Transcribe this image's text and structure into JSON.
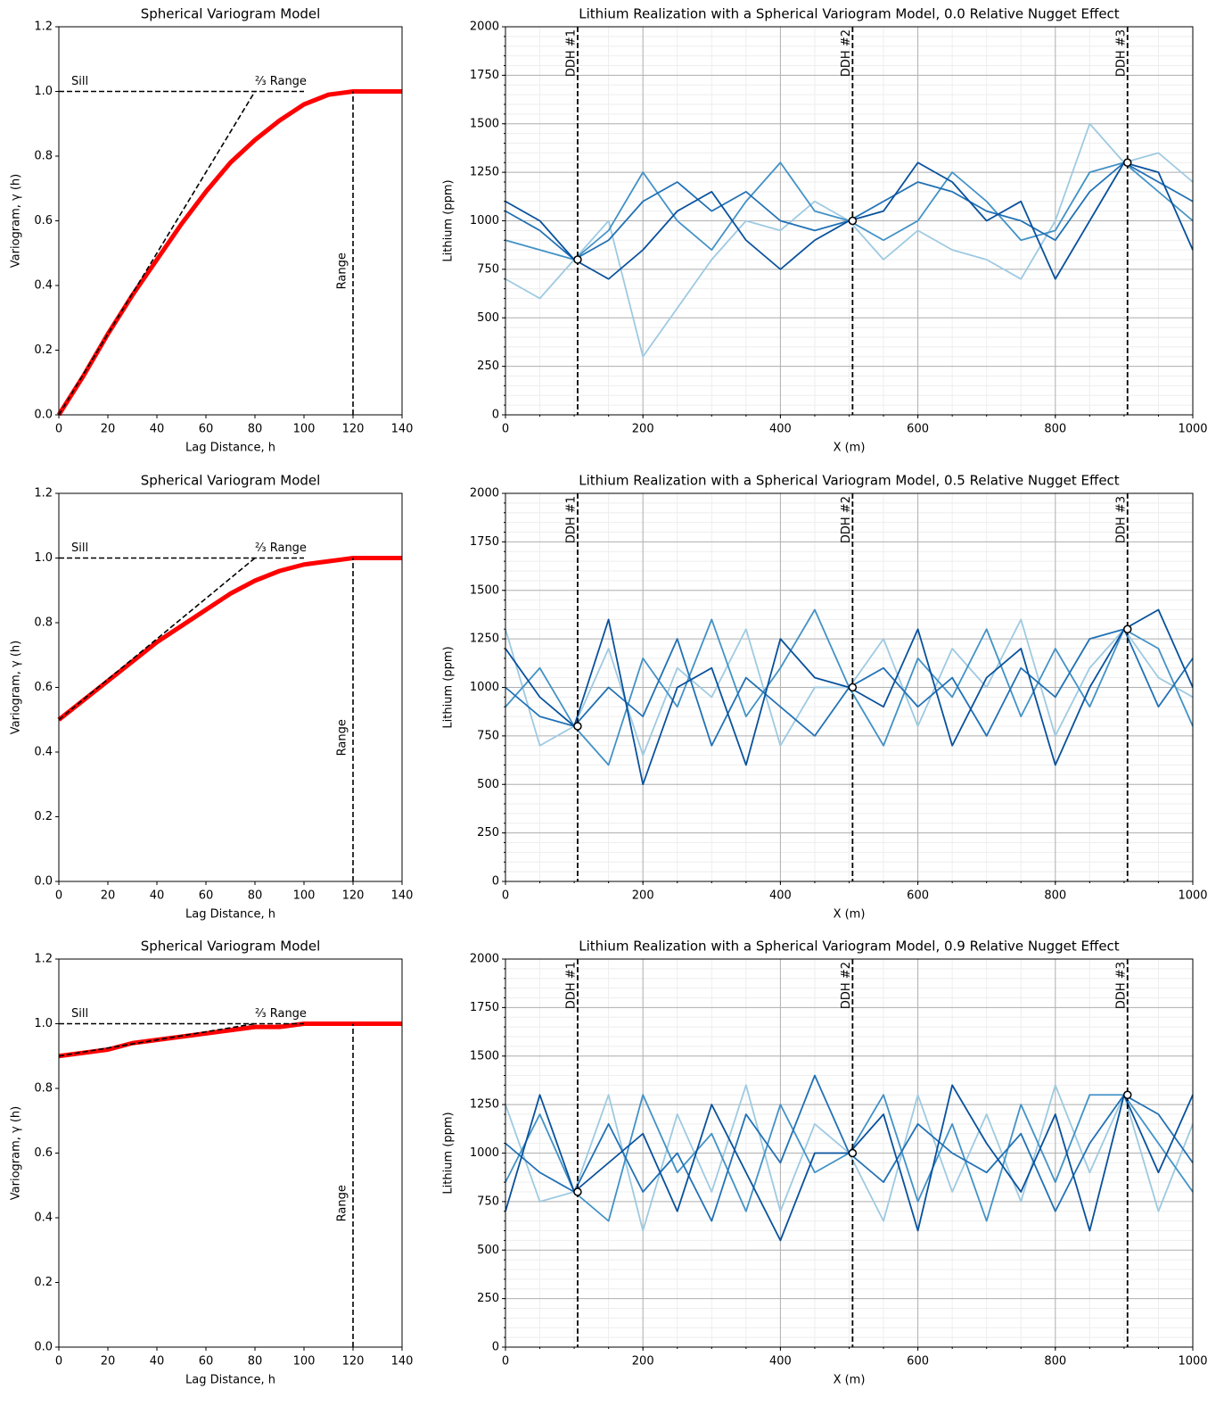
{
  "chart_data": [
    {
      "type": "line",
      "title": "Spherical Variogram Model",
      "xlabel": "Lag Distance, h",
      "ylabel": "Variogram, γ (h)",
      "x": [
        0,
        10,
        20,
        30,
        40,
        50,
        60,
        70,
        80,
        90,
        100,
        110,
        120,
        130,
        140
      ],
      "series": [
        {
          "color": "#ff0000",
          "values": [
            0,
            0.12,
            0.25,
            0.37,
            0.48,
            0.59,
            0.69,
            0.78,
            0.85,
            0.91,
            0.96,
            0.99,
            1,
            1,
            1
          ]
        }
      ],
      "sill_line": {
        "x": [
          0,
          100
        ],
        "y": [
          1,
          1
        ]
      },
      "tangent_line": {
        "x": [
          0,
          80
        ],
        "y": [
          0,
          1
        ]
      },
      "range_line": {
        "x": [
          120,
          120
        ],
        "y": [
          0,
          1
        ]
      },
      "sill_label": "Sill",
      "tangent_label": "⅔ Range",
      "range_label": "Range",
      "xlim": [
        0,
        140
      ],
      "xticks": [
        0,
        20,
        40,
        60,
        80,
        100,
        120,
        140
      ],
      "ylim": [
        0,
        1.2
      ],
      "yticks": [
        {
          "value": 0,
          "label": "0.0"
        },
        0.2,
        0.4,
        0.6,
        0.8,
        {
          "value": 1,
          "label": "1.0"
        },
        1.2
      ],
      "grid": false
    },
    {
      "type": "line",
      "title": "Lithium Realization with a Spherical Variogram Model, 0.0 Relative Nugget Effect",
      "xlabel": "X (m)",
      "ylabel": "Lithium (ppm)",
      "x": [
        0,
        50,
        100,
        150,
        200,
        250,
        300,
        350,
        400,
        450,
        500,
        550,
        600,
        650,
        700,
        750,
        800,
        850,
        900,
        950,
        1000
      ],
      "series": [
        {
          "color": "#9ecae1",
          "values": [
            700,
            600,
            800,
            1000,
            300,
            550,
            800,
            1000,
            950,
            1100,
            1000,
            800,
            950,
            850,
            800,
            700,
            1000,
            1500,
            1300,
            1350,
            1200
          ]
        },
        {
          "color": "#4292c6",
          "values": [
            900,
            850,
            800,
            950,
            1250,
            1000,
            850,
            1100,
            1300,
            1050,
            1000,
            900,
            1000,
            1250,
            1100,
            900,
            950,
            1250,
            1300,
            1150,
            1000
          ]
        },
        {
          "color": "#2171b5",
          "values": [
            1050,
            950,
            800,
            900,
            1100,
            1200,
            1050,
            1150,
            1000,
            950,
            1000,
            1100,
            1200,
            1150,
            1050,
            1000,
            900,
            1150,
            1300,
            1200,
            1100
          ]
        },
        {
          "color": "#08519c",
          "values": [
            1100,
            1000,
            800,
            700,
            850,
            1050,
            1150,
            900,
            750,
            900,
            1000,
            1050,
            1300,
            1200,
            1000,
            1100,
            700,
            1000,
            1300,
            1250,
            850
          ]
        }
      ],
      "wells": [
        {
          "label": "DDH #1",
          "x": 105,
          "value": 800
        },
        {
          "label": "DDH #2",
          "x": 505,
          "value": 1000
        },
        {
          "label": "DDH #3",
          "x": 905,
          "value": 1300
        }
      ],
      "xlim": [
        0,
        1000
      ],
      "xticks": [
        0,
        200,
        400,
        600,
        800,
        1000
      ],
      "ylim": [
        0,
        2000
      ],
      "yticks": [
        0,
        250,
        500,
        750,
        1000,
        1250,
        1500,
        1750,
        2000
      ],
      "grid": true
    },
    {
      "type": "line",
      "title": "Spherical Variogram Model",
      "xlabel": "Lag Distance, h",
      "ylabel": "Variogram, γ (h)",
      "x": [
        0,
        10,
        20,
        30,
        40,
        50,
        60,
        70,
        80,
        90,
        100,
        110,
        120,
        130,
        140
      ],
      "series": [
        {
          "color": "#ff0000",
          "values": [
            0.5,
            0.56,
            0.62,
            0.68,
            0.74,
            0.79,
            0.84,
            0.89,
            0.93,
            0.96,
            0.98,
            0.99,
            1,
            1,
            1
          ]
        }
      ],
      "sill_line": {
        "x": [
          0,
          100
        ],
        "y": [
          1,
          1
        ]
      },
      "tangent_line": {
        "x": [
          0,
          80
        ],
        "y": [
          0.5,
          1
        ]
      },
      "range_line": {
        "x": [
          120,
          120
        ],
        "y": [
          0,
          1
        ]
      },
      "sill_label": "Sill",
      "tangent_label": "⅔ Range",
      "range_label": "Range",
      "xlim": [
        0,
        140
      ],
      "xticks": [
        0,
        20,
        40,
        60,
        80,
        100,
        120,
        140
      ],
      "ylim": [
        0,
        1.2
      ],
      "yticks": [
        {
          "value": 0,
          "label": "0.0"
        },
        0.2,
        0.4,
        0.6,
        0.8,
        {
          "value": 1,
          "label": "1.0"
        },
        1.2
      ],
      "grid": false
    },
    {
      "type": "line",
      "title": "Lithium Realization with a Spherical Variogram Model, 0.5 Relative Nugget Effect",
      "xlabel": "X (m)",
      "ylabel": "Lithium (ppm)",
      "x": [
        0,
        50,
        100,
        150,
        200,
        250,
        300,
        350,
        400,
        450,
        500,
        550,
        600,
        650,
        700,
        750,
        800,
        850,
        900,
        950,
        1000
      ],
      "series": [
        {
          "color": "#9ecae1",
          "values": [
            1300,
            700,
            800,
            1200,
            650,
            1100,
            950,
            1300,
            700,
            1000,
            1000,
            1250,
            800,
            1200,
            1000,
            1350,
            750,
            1100,
            1300,
            1050,
            950
          ]
        },
        {
          "color": "#4292c6",
          "values": [
            900,
            1100,
            800,
            600,
            1150,
            900,
            1350,
            850,
            1100,
            1400,
            1000,
            700,
            1150,
            950,
            1300,
            850,
            1200,
            900,
            1300,
            1200,
            800
          ]
        },
        {
          "color": "#2171b5",
          "values": [
            1000,
            850,
            800,
            1000,
            850,
            1250,
            700,
            1050,
            900,
            750,
            1000,
            1100,
            900,
            1050,
            750,
            1100,
            950,
            1250,
            1300,
            900,
            1150
          ]
        },
        {
          "color": "#08519c",
          "values": [
            1200,
            950,
            800,
            1350,
            500,
            1000,
            1100,
            600,
            1250,
            1050,
            1000,
            900,
            1300,
            700,
            1050,
            1200,
            600,
            1000,
            1300,
            1400,
            1000
          ]
        }
      ],
      "wells": [
        {
          "label": "DDH #1",
          "x": 105,
          "value": 800
        },
        {
          "label": "DDH #2",
          "x": 505,
          "value": 1000
        },
        {
          "label": "DDH #3",
          "x": 905,
          "value": 1300
        }
      ],
      "xlim": [
        0,
        1000
      ],
      "xticks": [
        0,
        200,
        400,
        600,
        800,
        1000
      ],
      "ylim": [
        0,
        2000
      ],
      "yticks": [
        0,
        250,
        500,
        750,
        1000,
        1250,
        1500,
        1750,
        2000
      ],
      "grid": true
    },
    {
      "type": "line",
      "title": "Spherical Variogram Model",
      "xlabel": "Lag Distance, h",
      "ylabel": "Variogram, γ (h)",
      "x": [
        0,
        10,
        20,
        30,
        40,
        50,
        60,
        70,
        80,
        90,
        100,
        110,
        120,
        130,
        140
      ],
      "series": [
        {
          "color": "#ff0000",
          "values": [
            0.9,
            0.91,
            0.92,
            0.94,
            0.95,
            0.96,
            0.97,
            0.98,
            0.99,
            0.99,
            1,
            1,
            1,
            1,
            1
          ]
        }
      ],
      "sill_line": {
        "x": [
          0,
          100
        ],
        "y": [
          1,
          1
        ]
      },
      "tangent_line": {
        "x": [
          0,
          80
        ],
        "y": [
          0.9,
          1
        ]
      },
      "range_line": {
        "x": [
          120,
          120
        ],
        "y": [
          0,
          1
        ]
      },
      "sill_label": "Sill",
      "tangent_label": "⅔ Range",
      "range_label": "Range",
      "xlim": [
        0,
        140
      ],
      "xticks": [
        0,
        20,
        40,
        60,
        80,
        100,
        120,
        140
      ],
      "ylim": [
        0,
        1.2
      ],
      "yticks": [
        {
          "value": 0,
          "label": "0.0"
        },
        0.2,
        0.4,
        0.6,
        0.8,
        {
          "value": 1,
          "label": "1.0"
        },
        1.2
      ],
      "grid": false
    },
    {
      "type": "line",
      "title": "Lithium Realization with a Spherical Variogram Model, 0.9 Relative Nugget Effect",
      "xlabel": "X (m)",
      "ylabel": "Lithium (ppm)",
      "x": [
        0,
        50,
        100,
        150,
        200,
        250,
        300,
        350,
        400,
        450,
        500,
        550,
        600,
        650,
        700,
        750,
        800,
        850,
        900,
        950,
        1000
      ],
      "series": [
        {
          "color": "#9ecae1",
          "values": [
            1250,
            750,
            800,
            1300,
            600,
            1200,
            800,
            1350,
            700,
            1150,
            1000,
            650,
            1300,
            800,
            1200,
            750,
            1350,
            900,
            1300,
            700,
            1150
          ]
        },
        {
          "color": "#4292c6",
          "values": [
            850,
            1200,
            800,
            650,
            1300,
            900,
            1100,
            700,
            1250,
            900,
            1000,
            1300,
            750,
            1150,
            650,
            1250,
            850,
            1300,
            1300,
            1050,
            800
          ]
        },
        {
          "color": "#2171b5",
          "values": [
            1050,
            900,
            800,
            1150,
            800,
            1000,
            650,
            1200,
            950,
            1400,
            1000,
            850,
            1150,
            1000,
            900,
            1100,
            700,
            1050,
            1300,
            1200,
            950
          ]
        },
        {
          "color": "#08519c",
          "values": [
            700,
            1300,
            800,
            950,
            1100,
            700,
            1250,
            900,
            550,
            1000,
            1000,
            1200,
            600,
            1350,
            1050,
            800,
            1200,
            600,
            1300,
            900,
            1300
          ]
        }
      ],
      "wells": [
        {
          "label": "DDH #1",
          "x": 105,
          "value": 800
        },
        {
          "label": "DDH #2",
          "x": 505,
          "value": 1000
        },
        {
          "label": "DDH #3",
          "x": 905,
          "value": 1300
        }
      ],
      "xlim": [
        0,
        1000
      ],
      "xticks": [
        0,
        200,
        400,
        600,
        800,
        1000
      ],
      "ylim": [
        0,
        2000
      ],
      "yticks": [
        0,
        250,
        500,
        750,
        1000,
        1250,
        1500,
        1750,
        2000
      ],
      "grid": true
    }
  ]
}
